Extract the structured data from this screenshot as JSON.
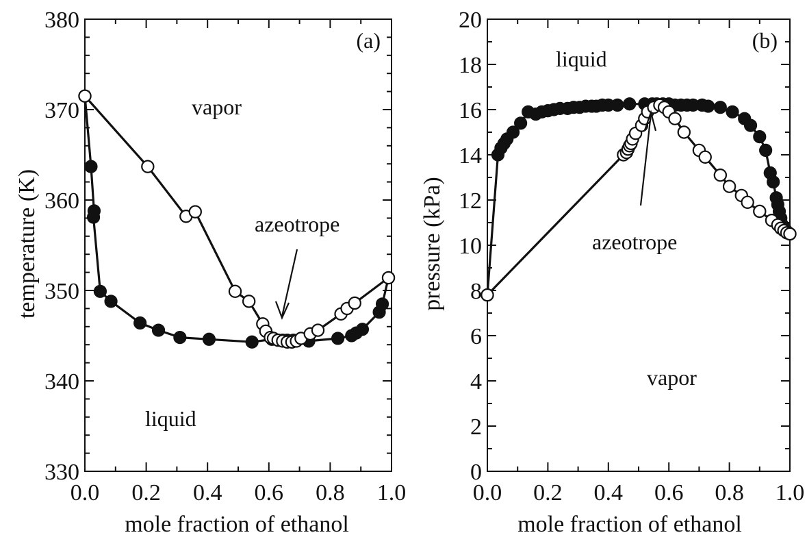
{
  "chart_data": [
    {
      "type": "line",
      "panel_label": "(a)",
      "xlabel": "mole fraction of ethanol",
      "ylabel": "temperature (K)",
      "xlim": [
        0.0,
        1.0
      ],
      "ylim": [
        330,
        380
      ],
      "x_ticks": [
        "0.0",
        "0.2",
        "0.4",
        "0.6",
        "0.8",
        "1.0"
      ],
      "y_ticks": [
        "330",
        "340",
        "350",
        "360",
        "370",
        "380"
      ],
      "grid": false,
      "annotations": [
        "vapor",
        "liquid",
        "azeotrope"
      ],
      "series": [
        {
          "marker": "filled-circle",
          "x": [
            0.0,
            0.02,
            0.03,
            0.028,
            0.05,
            0.085,
            0.18,
            0.24,
            0.31,
            0.405,
            0.545,
            0.61,
            0.645,
            0.66,
            0.68,
            0.73,
            0.825,
            0.87,
            0.885,
            0.905,
            0.96,
            0.97,
            0.99
          ],
          "y": [
            371.5,
            363.7,
            358.8,
            358.1,
            349.9,
            348.8,
            346.4,
            345.6,
            344.8,
            344.6,
            344.3,
            344.6,
            344.5,
            344.5,
            344.5,
            344.4,
            344.7,
            345.0,
            345.3,
            345.7,
            347.6,
            348.5,
            351.4
          ]
        },
        {
          "marker": "open-circle",
          "x": [
            0.0,
            0.205,
            0.33,
            0.36,
            0.49,
            0.535,
            0.58,
            0.59,
            0.605,
            0.615,
            0.63,
            0.645,
            0.66,
            0.675,
            0.69,
            0.705,
            0.735,
            0.76,
            0.835,
            0.855,
            0.88,
            0.99
          ],
          "y": [
            371.5,
            363.7,
            358.2,
            358.7,
            349.9,
            348.8,
            346.3,
            345.5,
            344.8,
            344.7,
            344.5,
            344.4,
            344.3,
            344.3,
            344.4,
            344.7,
            345.2,
            345.6,
            347.4,
            348.0,
            348.6,
            351.4
          ]
        }
      ]
    },
    {
      "type": "line",
      "panel_label": "(b)",
      "xlabel": "mole fraction of ethanol",
      "ylabel": "pressure (kPa)",
      "xlim": [
        0.0,
        1.0
      ],
      "ylim": [
        0,
        20
      ],
      "x_ticks": [
        "0.0",
        "0.2",
        "0.4",
        "0.6",
        "0.8",
        "1.0"
      ],
      "y_ticks": [
        "0",
        "2",
        "4",
        "6",
        "8",
        "10",
        "12",
        "14",
        "16",
        "18",
        "20"
      ],
      "grid": false,
      "annotations": [
        "liquid",
        "vapor",
        "azeotrope"
      ],
      "series": [
        {
          "marker": "filled-circle",
          "x": [
            0.0,
            0.035,
            0.045,
            0.055,
            0.065,
            0.085,
            0.11,
            0.135,
            0.16,
            0.18,
            0.2,
            0.22,
            0.24,
            0.265,
            0.285,
            0.305,
            0.325,
            0.345,
            0.36,
            0.38,
            0.4,
            0.43,
            0.47,
            0.52,
            0.545,
            0.56,
            0.58,
            0.6,
            0.62,
            0.64,
            0.66,
            0.68,
            0.71,
            0.73,
            0.77,
            0.81,
            0.85,
            0.87,
            0.9,
            0.92,
            0.935,
            0.945,
            0.955,
            0.96,
            0.965,
            0.97,
            0.975,
            0.98,
            0.985,
            0.99,
            0.995,
            1.0
          ],
          "y": [
            7.8,
            14.0,
            14.3,
            14.5,
            14.7,
            15.0,
            15.4,
            15.9,
            15.8,
            15.9,
            15.95,
            16.0,
            16.05,
            16.05,
            16.1,
            16.1,
            16.15,
            16.15,
            16.15,
            16.2,
            16.2,
            16.2,
            16.25,
            16.25,
            16.25,
            16.25,
            16.25,
            16.25,
            16.2,
            16.2,
            16.2,
            16.2,
            16.2,
            16.15,
            16.1,
            15.9,
            15.6,
            15.3,
            14.8,
            14.2,
            13.2,
            12.8,
            12.1,
            11.8,
            11.5,
            11.2,
            10.9,
            10.8,
            10.7,
            10.6,
            10.55,
            10.5
          ]
        },
        {
          "marker": "open-circle",
          "x": [
            0.0,
            0.45,
            0.46,
            0.465,
            0.47,
            0.475,
            0.48,
            0.49,
            0.51,
            0.52,
            0.53,
            0.55,
            0.57,
            0.585,
            0.6,
            0.62,
            0.65,
            0.7,
            0.72,
            0.77,
            0.8,
            0.84,
            0.86,
            0.9,
            0.94,
            0.96,
            0.97,
            0.98,
            0.99,
            1.0
          ],
          "y": [
            7.8,
            14.0,
            14.1,
            14.25,
            14.4,
            14.5,
            14.7,
            14.95,
            15.3,
            15.6,
            15.9,
            16.1,
            16.2,
            16.1,
            15.9,
            15.6,
            15.0,
            14.2,
            13.9,
            13.1,
            12.6,
            12.2,
            11.9,
            11.5,
            11.1,
            10.9,
            10.75,
            10.65,
            10.55,
            10.5
          ]
        }
      ]
    }
  ]
}
